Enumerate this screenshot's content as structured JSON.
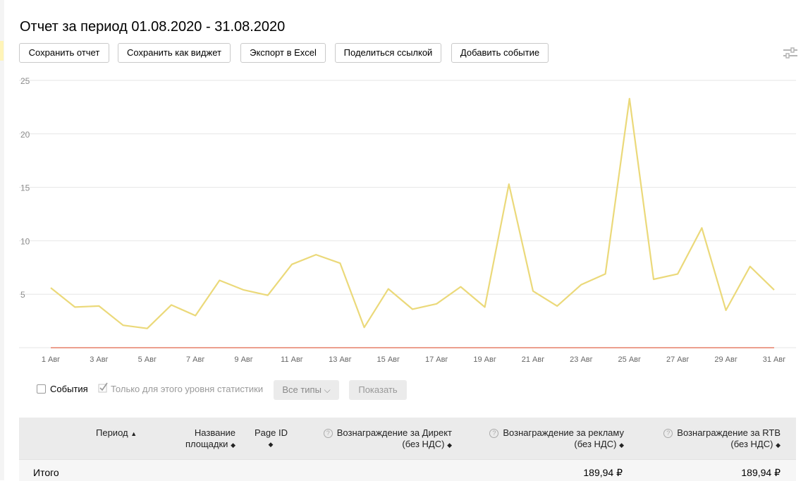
{
  "title": "Отчет за период 01.08.2020 - 31.08.2020",
  "toolbar": {
    "save_report": "Сохранить отчет",
    "save_as_widget": "Сохранить как виджет",
    "export_excel": "Экспорт в Excel",
    "share_link": "Поделиться ссылкой",
    "add_event": "Добавить событие"
  },
  "icons": {
    "settings": "sliders-icon",
    "help": "question-circle-icon"
  },
  "chart_data": {
    "type": "line",
    "ylim": [
      0,
      25
    ],
    "yticks": [
      "5",
      "10",
      "15",
      "20",
      "25"
    ],
    "x_labels": [
      "1 Авг",
      "3 Авг",
      "5 Авг",
      "7 Авг",
      "9 Авг",
      "11 Авг",
      "13 Авг",
      "15 Авг",
      "17 Авг",
      "19 Авг",
      "21 Авг",
      "23 Авг",
      "25 Авг",
      "27 Авг",
      "29 Авг",
      "31 Авг"
    ],
    "grid": true,
    "series": [
      {
        "color": "#ebd97a",
        "values": [
          5.6,
          3.8,
          3.9,
          2.1,
          1.8,
          4.0,
          3.0,
          6.3,
          5.4,
          4.9,
          7.8,
          8.7,
          7.9,
          1.9,
          5.5,
          3.6,
          4.1,
          5.7,
          3.8,
          15.3,
          5.3,
          3.9,
          5.9,
          6.9,
          23.3,
          6.4,
          6.9,
          11.2,
          3.5,
          7.6,
          5.4
        ]
      },
      {
        "color": "#e0664a",
        "values": [
          0,
          0,
          0,
          0,
          0,
          0,
          0,
          0,
          0,
          0,
          0,
          0,
          0,
          0,
          0,
          0,
          0,
          0,
          0,
          0,
          0,
          0,
          0,
          0,
          0,
          0,
          0,
          0,
          0,
          0,
          0
        ]
      }
    ]
  },
  "controls": {
    "events_label": "События",
    "this_level_label": "Только для этого уровня статистики",
    "all_types": "Все типы",
    "all_types_chevron": "⌵",
    "show": "Показать"
  },
  "table": {
    "headers": {
      "period": "Период",
      "site_name_1": "Название",
      "site_name_2": "площадки",
      "page_id": "Page ID",
      "direct_1": "Вознаграждение за Директ",
      "direct_2": "(без НДС)",
      "ads_1": "Вознаграждение за рекламу",
      "ads_2": "(без НДС)",
      "rtb_1": "Вознаграждение за RTB",
      "rtb_2": "(без НДС)"
    },
    "sort_asc": "▲",
    "sort_both": "◆",
    "total": {
      "label": "Итого",
      "direct": "",
      "ads": "189,94 ₽",
      "rtb": "189,94 ₽"
    }
  }
}
